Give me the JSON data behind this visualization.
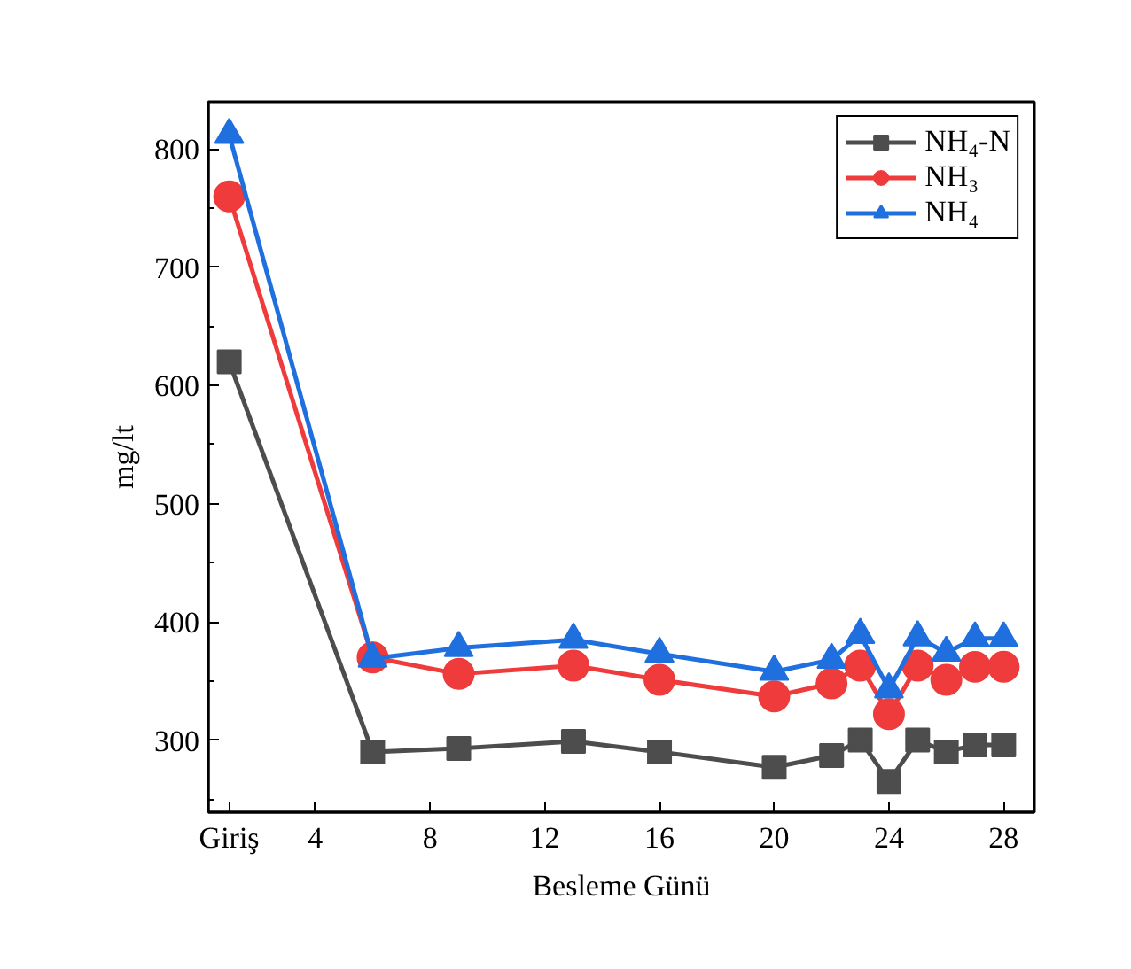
{
  "chart_data": {
    "type": "line",
    "xlabel": "Besleme Günü",
    "ylabel": "mg/lt",
    "x": [
      1,
      6,
      9,
      13,
      16,
      20,
      22,
      23,
      24,
      25,
      26,
      27,
      28
    ],
    "series": [
      {
        "name": "NH₄-N",
        "color": "#4d4d4d",
        "marker": "square",
        "values": [
          620,
          290,
          293,
          299,
          290,
          277,
          287,
          300,
          265,
          300,
          290,
          296,
          296
        ]
      },
      {
        "name": "NH₃",
        "color": "#ef3b3b",
        "marker": "circle",
        "values": [
          760,
          370,
          356,
          363,
          351,
          337,
          348,
          363,
          322,
          363,
          351,
          362,
          362
        ]
      },
      {
        "name": "NH₄",
        "color": "#1f6fdf",
        "marker": "triangle",
        "values": [
          812,
          369,
          378,
          385,
          373,
          358,
          368,
          389,
          343,
          387,
          374,
          386,
          386
        ]
      }
    ],
    "xlim": [
      0.27,
      29.07
    ],
    "ylim": [
      239,
      840
    ],
    "xticks": [
      {
        "value": 1,
        "label": "Giriş"
      },
      4,
      8,
      12,
      16,
      20,
      24,
      28
    ],
    "yticks": [
      {
        "value": 250,
        "label": null
      },
      300,
      {
        "value": 350,
        "label": null
      },
      400,
      {
        "value": 450,
        "label": null
      },
      500,
      {
        "value": 550,
        "label": null
      },
      600,
      {
        "value": 650,
        "label": null
      },
      700,
      {
        "value": 750,
        "label": null
      },
      800
    ],
    "grid": false,
    "legend": "top right",
    "line_style": "solid"
  }
}
